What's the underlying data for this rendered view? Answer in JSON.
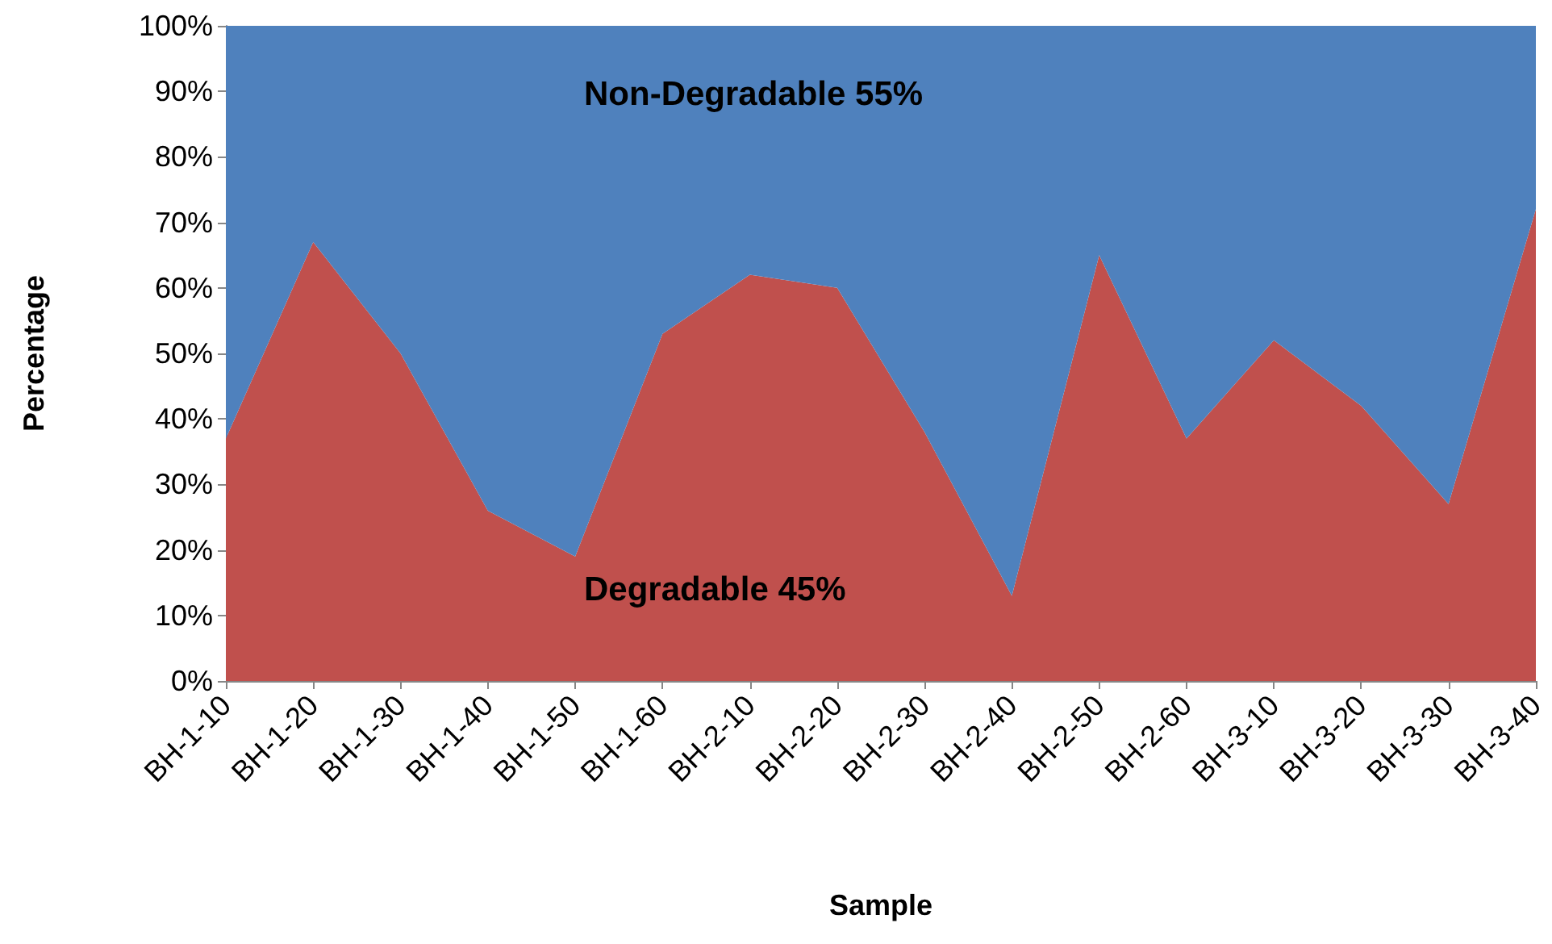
{
  "chart_data": {
    "type": "area",
    "stacked": true,
    "xlabel": "Sample",
    "ylabel": "Percentage",
    "categories": [
      "BH-1-10",
      "BH-1-20",
      "BH-1-30",
      "BH-1-40",
      "BH-1-50",
      "BH-1-60",
      "BH-2-10",
      "BH-2-20",
      "BH-2-30",
      "BH-2-40",
      "BH-2-50",
      "BH-2-60",
      "BH-3-10",
      "BH-3-20",
      "BH-3-30",
      "BH-3-40"
    ],
    "series": [
      {
        "color": "#c0504d",
        "values": [
          37,
          67,
          50,
          26,
          19,
          53,
          62,
          60,
          38,
          13,
          65,
          37,
          52,
          42,
          27,
          72
        ]
      },
      {
        "color": "#4f81bd",
        "values": [
          63,
          33,
          50,
          74,
          81,
          47,
          38,
          40,
          62,
          87,
          35,
          63,
          48,
          58,
          73,
          28
        ]
      }
    ],
    "ylim": [
      0,
      100
    ],
    "yticks": [
      {
        "value": 0,
        "label": "0%"
      },
      {
        "value": 10,
        "label": "10%"
      },
      {
        "value": 20,
        "label": "20%"
      },
      {
        "value": 30,
        "label": "30%"
      },
      {
        "value": 40,
        "label": "40%"
      },
      {
        "value": 50,
        "label": "50%"
      },
      {
        "value": 60,
        "label": "60%"
      },
      {
        "value": 70,
        "label": "70%"
      },
      {
        "value": 80,
        "label": "80%"
      },
      {
        "value": 90,
        "label": "90%"
      },
      {
        "value": 100,
        "label": "100%"
      }
    ],
    "grid": false,
    "annotations": [
      "Non-Degradable 55%",
      "Degradable 45%"
    ]
  }
}
